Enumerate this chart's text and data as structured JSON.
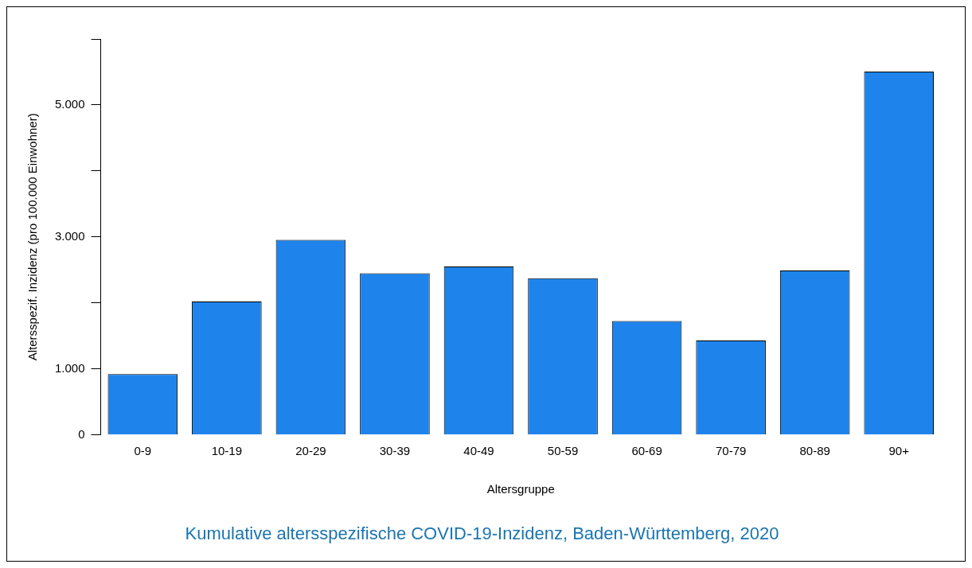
{
  "chart_data": {
    "type": "bar",
    "title": "Kumulative altersspezifische COVID-19-Inzidenz, Baden-Württemberg, 2020",
    "xlabel": "Altersgruppe",
    "ylabel": "Altersspezif. Inzidenz (pro 100.000 Einwohner)",
    "categories": [
      "0-9",
      "10-19",
      "20-29",
      "30-39",
      "40-49",
      "50-59",
      "60-69",
      "70-79",
      "80-89",
      "90+"
    ],
    "values": [
      920,
      2020,
      2955,
      2450,
      2550,
      2375,
      1725,
      1430,
      2490,
      5505
    ],
    "color": "#1e84ec",
    "ylim": [
      0,
      6000
    ],
    "yticks": [
      {
        "value": 0,
        "label": "0"
      },
      {
        "value": 1000,
        "label": "1.000"
      },
      {
        "value": 2000,
        "label": null
      },
      {
        "value": 3000,
        "label": "3.000"
      },
      {
        "value": 4000,
        "label": null
      },
      {
        "value": 5000,
        "label": "5.000"
      },
      {
        "value": 6000,
        "label": null
      }
    ],
    "grid": false,
    "legend": false
  }
}
